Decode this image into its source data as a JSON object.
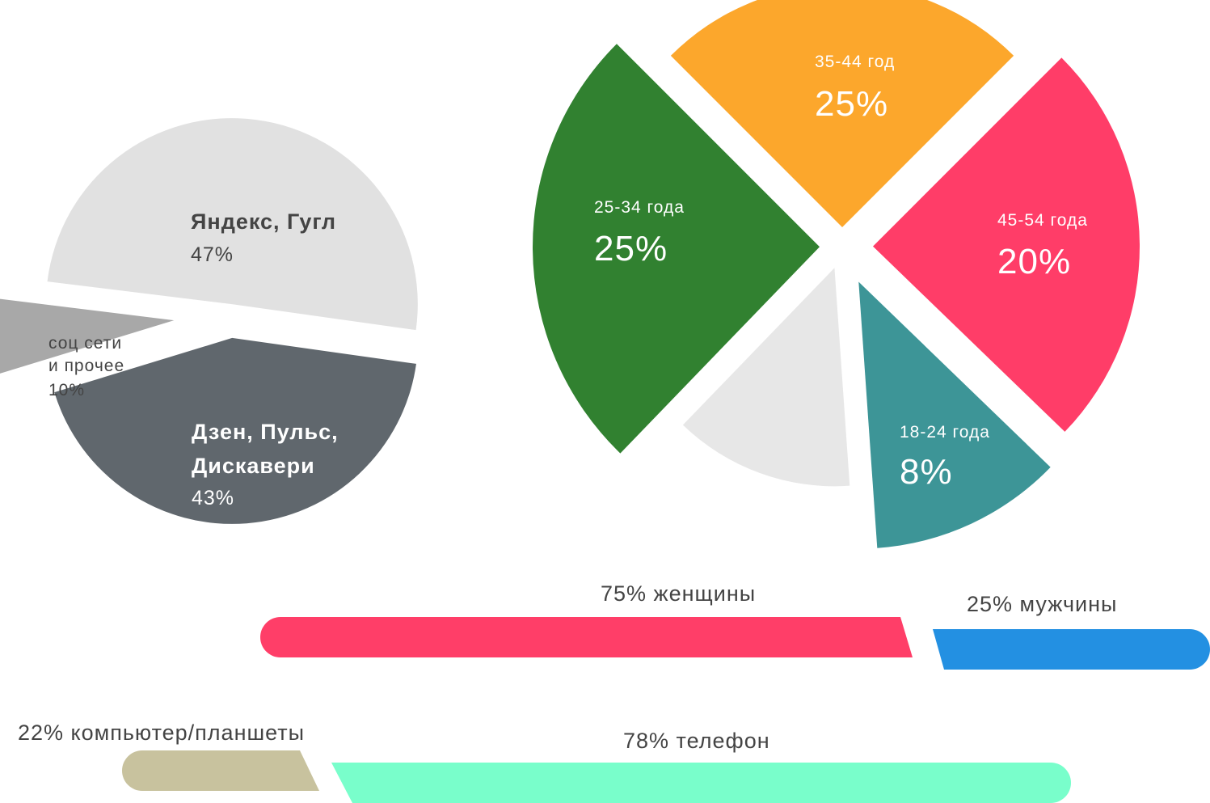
{
  "chart_data": [
    {
      "type": "pie",
      "title": "",
      "slices": [
        {
          "lines": [
            "Яндекс, Гугл"
          ],
          "value_label": "47%",
          "value": 47,
          "color": "#e1e1e1",
          "text_color": "#444444",
          "bold": true
        },
        {
          "lines": [
            "Дзен, Пульс,",
            "Дискавери"
          ],
          "value_label": "43%",
          "value": 43,
          "color": "#60676d",
          "text_color": "#ffffff",
          "bold": true
        },
        {
          "lines": [
            "соц сети",
            "и прочее"
          ],
          "value_label": "10%",
          "value": 10,
          "color": "#a8a8a8",
          "text_color": "#444444",
          "bold": false
        }
      ]
    },
    {
      "type": "pie",
      "title": "",
      "slices": [
        {
          "label": "35-44 год",
          "value_label": "25%",
          "value": 25,
          "color": "#fca72c"
        },
        {
          "label": "45-54 года",
          "value_label": "20%",
          "value": 20,
          "color": "#ff3d68"
        },
        {
          "label": "18-24 года",
          "value_label": "8%",
          "value": 8,
          "color": "#3d9597"
        },
        {
          "label": "",
          "value_label": "",
          "value": 12,
          "color": "#e7e7e7"
        },
        {
          "label": "25-34 года",
          "value_label": "25%",
          "value": 25,
          "color": "#318130"
        }
      ]
    },
    {
      "type": "bar",
      "orientation": "horizontal-stacked",
      "segments": [
        {
          "label": "75% женщины",
          "value": 75,
          "color": "#ff3e68"
        },
        {
          "label": "25% мужчины",
          "value": 25,
          "color": "#2390e2"
        }
      ]
    },
    {
      "type": "bar",
      "orientation": "horizontal-stacked",
      "segments": [
        {
          "label": "22% компьютер/планшеты",
          "value": 22,
          "color": "#c8c29e"
        },
        {
          "label": "78% телефон",
          "value": 78,
          "color": "#79fecb"
        }
      ]
    }
  ]
}
